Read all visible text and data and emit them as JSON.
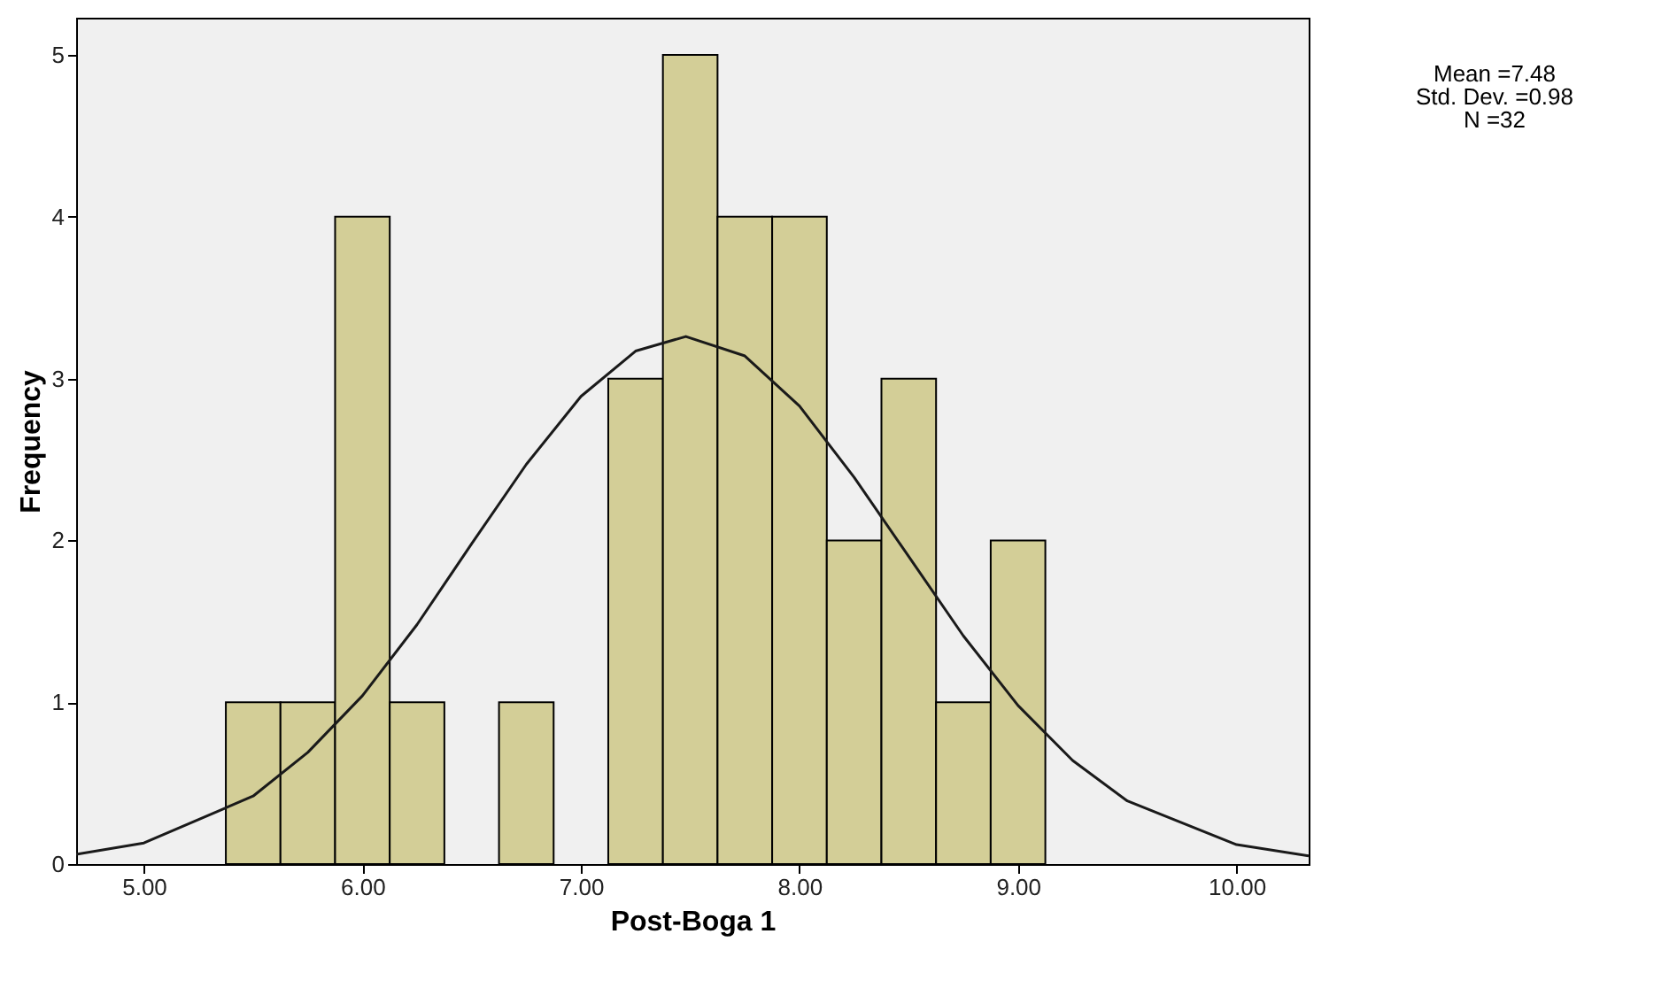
{
  "chart_data": {
    "type": "histogram",
    "xlabel": "Post-Boga 1",
    "ylabel": "Frequency",
    "bins": [
      5.375,
      5.625,
      5.875,
      6.125,
      6.375,
      6.625,
      6.875,
      7.125,
      7.375,
      7.625,
      7.875,
      8.125,
      8.375,
      8.625,
      8.875,
      9.125
    ],
    "values": [
      1,
      1,
      4,
      1,
      0,
      1,
      0,
      3,
      5,
      4,
      4,
      2,
      3,
      1,
      2
    ],
    "color": "#d3ce97",
    "series": [
      {
        "type": "line",
        "color": "#1a1a1a",
        "x": [
          4.69,
          5.0,
          5.5,
          5.75,
          6.0,
          6.25,
          6.5,
          6.75,
          7.0,
          7.25,
          7.48,
          7.75,
          8.0,
          8.25,
          8.5,
          8.75,
          9.0,
          9.25,
          9.5,
          10.0,
          10.33
        ],
        "values": [
          0.06,
          0.13,
          0.42,
          0.69,
          1.04,
          1.48,
          1.98,
          2.47,
          2.89,
          3.17,
          3.26,
          3.14,
          2.83,
          2.39,
          1.9,
          1.41,
          0.98,
          0.64,
          0.39,
          0.12,
          0.05
        ]
      }
    ],
    "xlim": [
      4.69,
      10.33
    ],
    "xticks": [
      {
        "value": 5,
        "label": "5.00"
      },
      {
        "value": 6,
        "label": "6.00"
      },
      {
        "value": 7,
        "label": "7.00"
      },
      {
        "value": 8,
        "label": "8.00"
      },
      {
        "value": 9,
        "label": "9.00"
      },
      {
        "value": 10,
        "label": "10.00"
      }
    ],
    "ylim": [
      0,
      5.23
    ],
    "yticks": [
      0,
      1,
      2,
      3,
      4,
      5
    ],
    "annotations": [
      "Mean =7.48",
      "Std. Dev. =0.98",
      "N =32"
    ]
  }
}
